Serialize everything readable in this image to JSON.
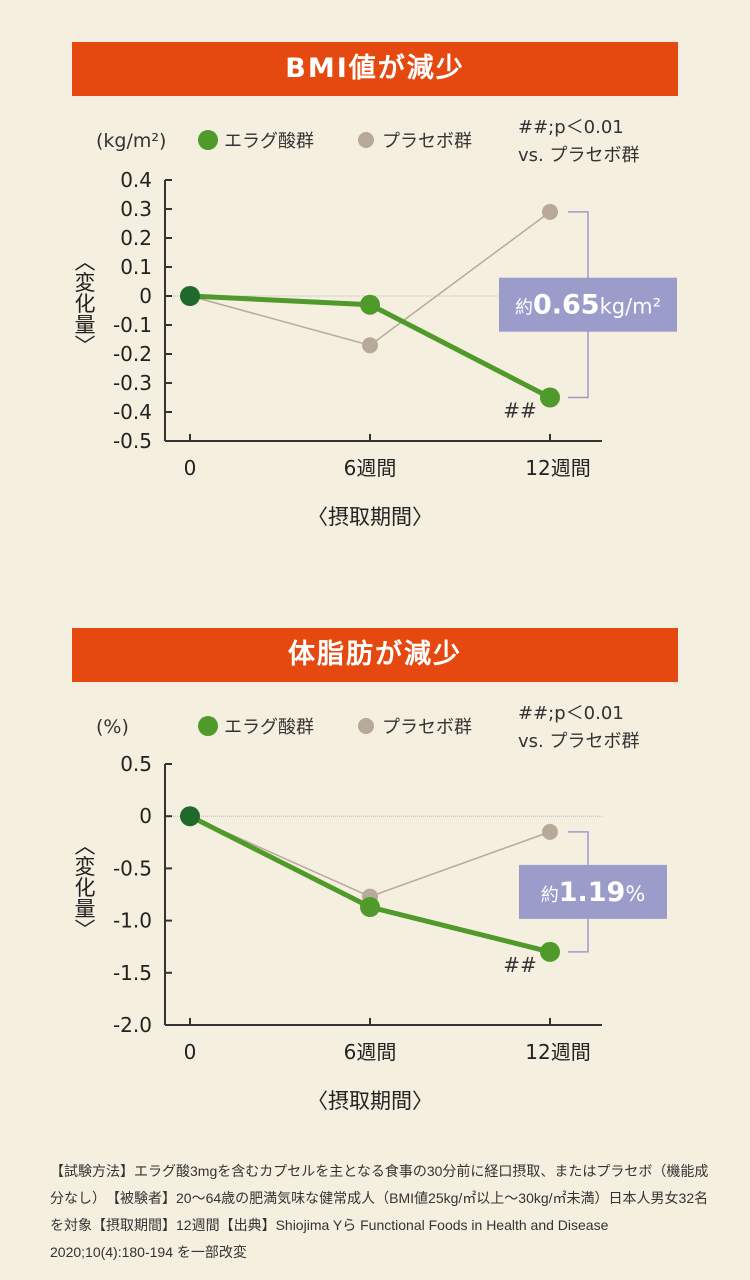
{
  "colors": {
    "banner": "#e6490f",
    "ellagic": "#4f9a2a",
    "ellagic_dark": "#1f6a2a",
    "placebo": "#b8a999",
    "callout": "#9c9ccb",
    "axis": "#333333"
  },
  "legend": {
    "ellagic": "エラグ酸群",
    "placebo": "プラセボ群",
    "sig1": "##;p＜0.01",
    "sig2": "vs. プラセボ群"
  },
  "footnote": "【試験方法】エラグ酸3mgを含むカプセルを主となる食事の30分前に経口摂取、またはプラセボ（機能成分なし）　【被験者】20～64歳の肥満気味な健常成人（BMI値25kg/㎡以上～30kg/㎡未満）日本人男女32名を対象【摂取期間】12週間【出典】Shiojima Yら Functional Foods in Health and Disease 2020;10(4):180-194 を一部改変",
  "chart_data": [
    {
      "type": "line",
      "title": "BMI値が減少",
      "unit": "(kg/m²)",
      "ylabel": "〈変化量〉",
      "xlabel": "〈摂取期間〉",
      "categories": [
        "0",
        "6週間",
        "12週間"
      ],
      "ylim": [
        -0.5,
        0.4
      ],
      "yticks": [
        "0.4",
        "0.3",
        "0.2",
        "0.1",
        "0",
        "-0.1",
        "-0.2",
        "-0.3",
        "-0.4",
        "-0.5"
      ],
      "ytick_values": [
        0.4,
        0.3,
        0.2,
        0.1,
        0,
        -0.1,
        -0.2,
        -0.3,
        -0.4,
        -0.5
      ],
      "series": [
        {
          "name": "エラグ酸群",
          "values": [
            0,
            -0.03,
            -0.35
          ]
        },
        {
          "name": "プラセボ群",
          "values": [
            0,
            -0.17,
            0.29
          ]
        }
      ],
      "annotation": {
        "prefix": "約",
        "value": "0.65",
        "suffix": "kg/m²"
      },
      "significance": "##"
    },
    {
      "type": "line",
      "title": "体脂肪が減少",
      "unit": "(%)",
      "ylabel": "〈変化量〉",
      "xlabel": "〈摂取期間〉",
      "categories": [
        "0",
        "6週間",
        "12週間"
      ],
      "ylim": [
        -2.0,
        0.5
      ],
      "yticks": [
        "0.5",
        "0",
        "-0.5",
        "-1.0",
        "-1.5",
        "-2.0"
      ],
      "ytick_values": [
        0.5,
        0,
        -0.5,
        -1.0,
        -1.5,
        -2.0
      ],
      "series": [
        {
          "name": "エラグ酸群",
          "values": [
            0,
            -0.87,
            -1.3
          ]
        },
        {
          "name": "プラセボ群",
          "values": [
            0,
            -0.77,
            -0.15
          ]
        }
      ],
      "annotation": {
        "prefix": "約",
        "value": "1.19",
        "suffix": "%"
      },
      "significance": "##"
    }
  ]
}
